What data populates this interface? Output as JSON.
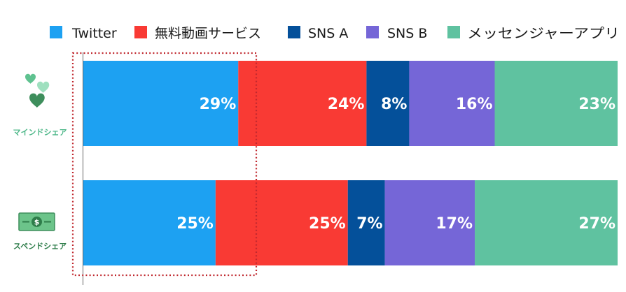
{
  "chart_data": {
    "type": "bar",
    "orientation": "horizontal",
    "stacked": true,
    "normalized_percent": true,
    "categories": [
      "マインドシェア",
      "スペンドシェア"
    ],
    "series": [
      {
        "name": "Twitter",
        "color": "#1da1f2",
        "values": [
          29,
          25
        ]
      },
      {
        "name": "無料動画サービス",
        "color": "#f93a34",
        "values": [
          24,
          25
        ]
      },
      {
        "name": "SNS A",
        "color": "#04509a",
        "values": [
          8,
          7
        ]
      },
      {
        "name": "SNS B",
        "color": "#7566d7",
        "values": [
          16,
          17
        ]
      },
      {
        "name": "メッセンジャーアプリ",
        "color": "#5fc2a0",
        "values": [
          23,
          27
        ]
      }
    ],
    "data_labels": [
      [
        "29%",
        "24%",
        "8%",
        "16%",
        "23%"
      ],
      [
        "25%",
        "25%",
        "7%",
        "17%",
        "27%"
      ]
    ],
    "legend_position": "top",
    "category_icons": [
      "hearts-icon",
      "money-bill-icon"
    ],
    "category_label_colors": [
      "#4fb88a",
      "#2e7d4a"
    ],
    "highlight": {
      "style": "dotted-red-box",
      "covers": "first-series"
    },
    "grid": false
  }
}
